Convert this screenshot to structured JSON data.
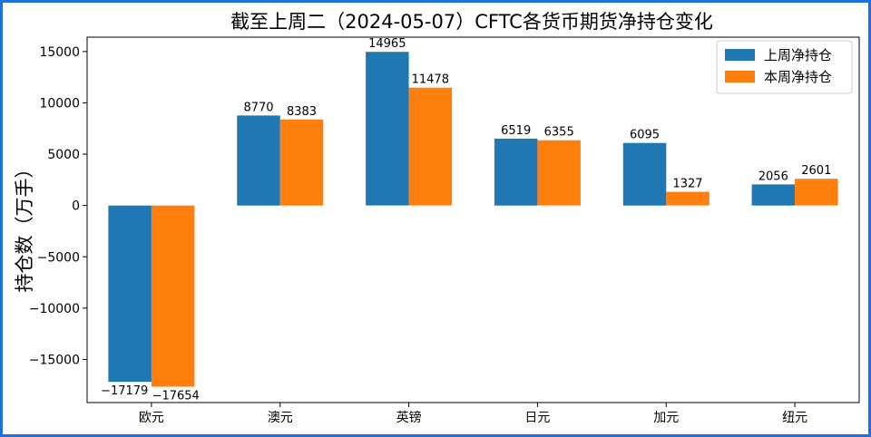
{
  "chart_data": {
    "type": "bar",
    "title": "截至上周二（2024-05-07）CFTC各货币期货净持仓变化",
    "xlabel": "",
    "ylabel": "持仓数（万手）",
    "categories": [
      "欧元",
      "澳元",
      "英镑",
      "日元",
      "加元",
      "纽元"
    ],
    "series": [
      {
        "name": "上周净持仓",
        "color": "#1f77b4",
        "values": [
          -17179,
          8770,
          14965,
          6519,
          6095,
          2056
        ]
      },
      {
        "name": "本周净持仓",
        "color": "#ff7f0e",
        "values": [
          -17654,
          8383,
          11478,
          6355,
          1327,
          2601
        ]
      }
    ],
    "ylim": [
      -19200,
      16400
    ],
    "yticks": [
      -15000,
      -10000,
      -5000,
      0,
      5000,
      10000,
      15000
    ],
    "ytick_labels": [
      "−15000",
      "−10000",
      "−5000",
      "0",
      "5000",
      "10000",
      "15000"
    ],
    "value_labels": [
      [
        "−17179",
        "8770",
        "14965",
        "6519",
        "6095",
        "2056"
      ],
      [
        "−17654",
        "8383",
        "11478",
        "6355",
        "1327",
        "2601"
      ]
    ],
    "legend_position": "top-right",
    "grid": false
  }
}
